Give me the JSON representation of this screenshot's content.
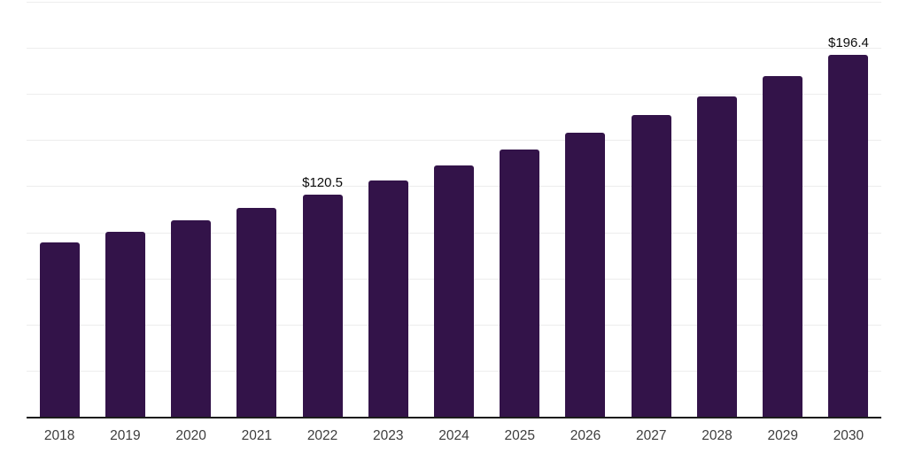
{
  "chart": {
    "background_color": "#ffffff",
    "bar_color": "#331349",
    "gridline_color": "#ededed",
    "axis_line_color": "#1c1c1c",
    "tick_label_color": "#3d3d3d",
    "data_label_color": "#0b0b0b"
  },
  "chart_data": {
    "type": "bar",
    "title": "",
    "xlabel": "",
    "ylabel": "",
    "categories": [
      "2018",
      "2019",
      "2020",
      "2021",
      "2022",
      "2023",
      "2024",
      "2025",
      "2026",
      "2027",
      "2028",
      "2029",
      "2030"
    ],
    "values": [
      94.4,
      100.3,
      106.6,
      113.4,
      120.5,
      128.1,
      136.2,
      144.8,
      153.9,
      163.6,
      173.9,
      184.9,
      196.4
    ],
    "data_labels": [
      "",
      "",
      "",
      "",
      "$120.5",
      "",
      "",
      "",
      "",
      "",
      "",
      "",
      "$196.4"
    ],
    "ylim": [
      0,
      225
    ],
    "gridline_step": 25,
    "grid": true,
    "legend": false,
    "y_axis_labels_visible": false
  }
}
